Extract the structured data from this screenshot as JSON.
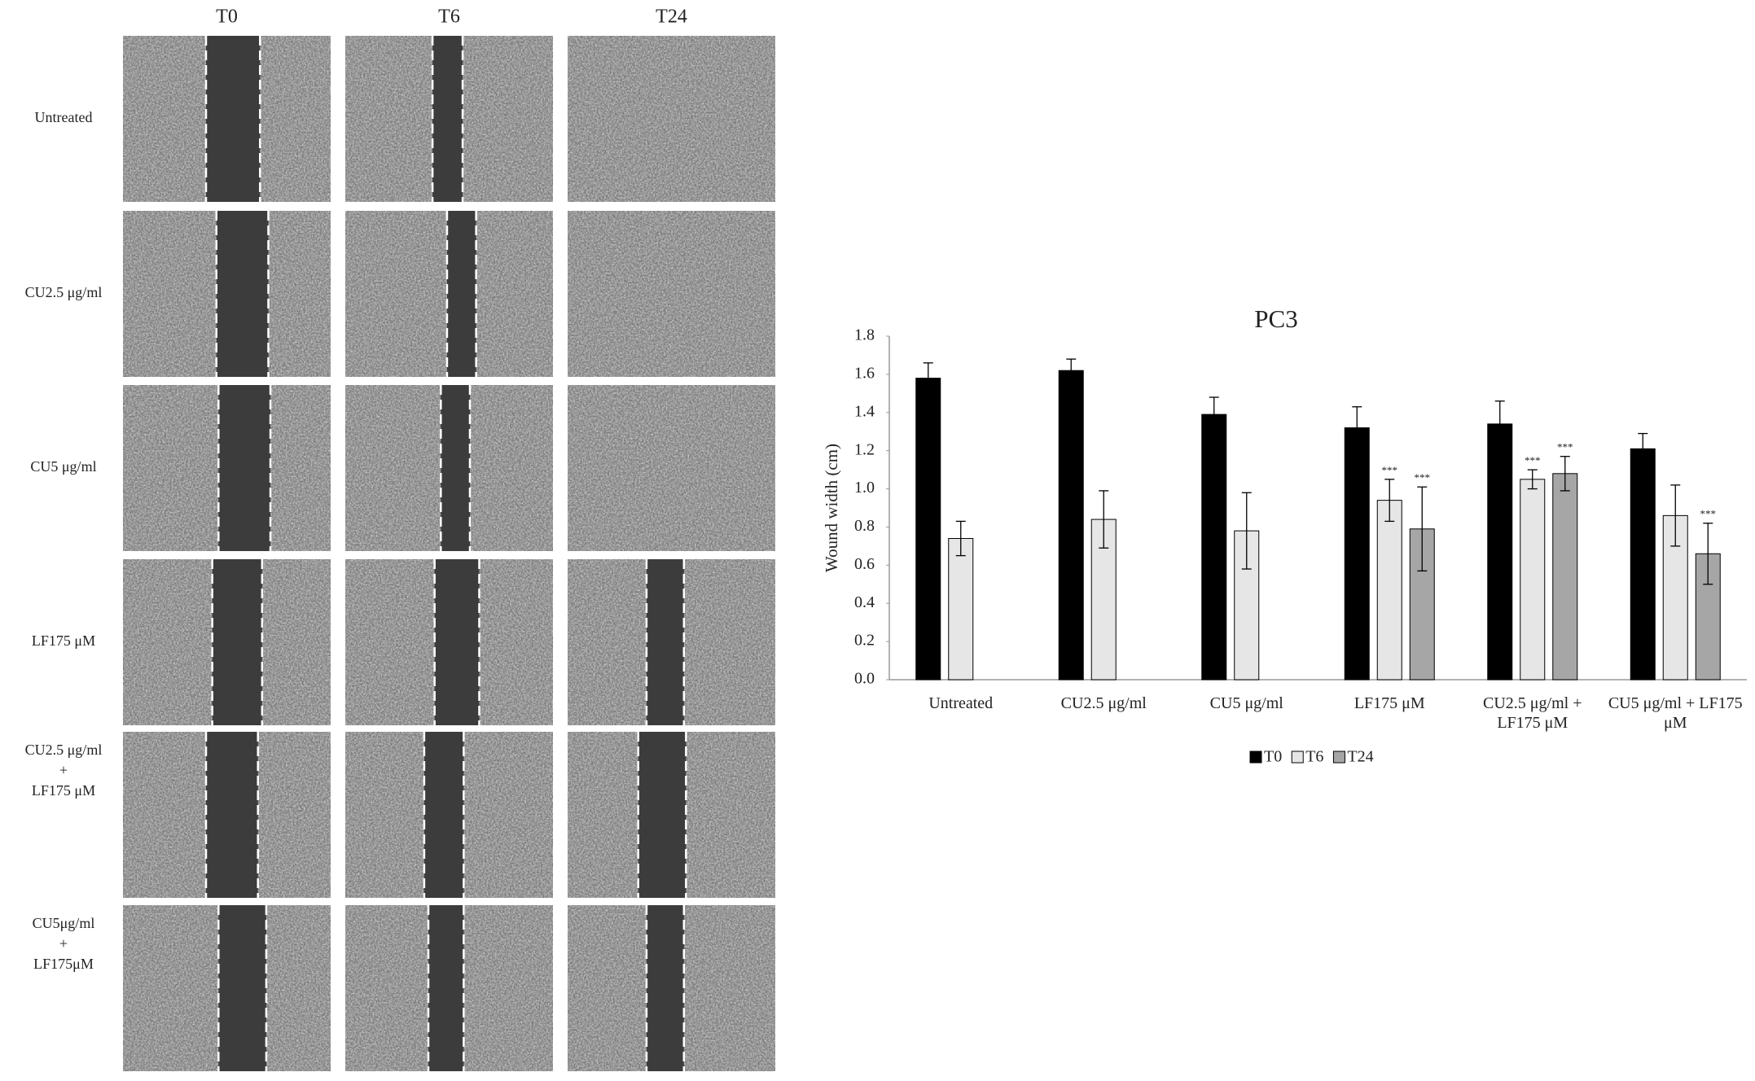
{
  "figure": {
    "columns": [
      "T0",
      "T6",
      "T24"
    ],
    "rows": [
      [
        "Untreated"
      ],
      [
        "CU2.5 μg/ml"
      ],
      [
        "CU5 μg/ml"
      ],
      [
        "LF175 μM"
      ],
      [
        "CU2.5 μg/ml",
        "+",
        "LF175 μM"
      ],
      [
        "CU5μg/ml",
        "+",
        "LF175μM"
      ]
    ]
  },
  "chart_data": {
    "type": "bar",
    "title": "PC3",
    "y_label": "Wound width (cm)",
    "categories": [
      "Untreated",
      "CU2.5 μg/ml",
      "CU5 μg/ml",
      "LF175 μM",
      "CU2.5 μg/ml + LF175 μM",
      "CU5 μg/ml + LF175 μM"
    ],
    "series": [
      {
        "name": "T0",
        "color": "#000000",
        "values": [
          1.58,
          1.62,
          1.39,
          1.32,
          1.34,
          1.21
        ],
        "errors": [
          0.08,
          0.06,
          0.09,
          0.11,
          0.12,
          0.08
        ],
        "significance": [
          null,
          null,
          null,
          null,
          null,
          null
        ]
      },
      {
        "name": "T6",
        "color": "#e6e6e6",
        "values": [
          0.74,
          0.84,
          0.78,
          0.94,
          1.05,
          0.86
        ],
        "errors": [
          0.09,
          0.15,
          0.2,
          0.11,
          0.05,
          0.16
        ],
        "significance": [
          null,
          null,
          null,
          "***",
          "***",
          null
        ]
      },
      {
        "name": "T24",
        "color": "#a6a6a6",
        "values": [
          null,
          null,
          null,
          0.79,
          1.08,
          0.66
        ],
        "errors": [
          null,
          null,
          null,
          0.22,
          0.09,
          0.16
        ],
        "significance": [
          null,
          null,
          null,
          "***",
          "***",
          "***"
        ]
      }
    ],
    "ylim": [
      0,
      1.8
    ],
    "yticks": [
      {
        "value": 0,
        "label": "0.0"
      },
      {
        "value": 0.2,
        "label": "0.2"
      },
      {
        "value": 0.4,
        "label": "0.4"
      },
      {
        "value": 0.6,
        "label": "0.6"
      },
      {
        "value": 0.8,
        "label": "0.8"
      },
      {
        "value": 1.0,
        "label": "1.0"
      },
      {
        "value": 1.2,
        "label": "1.2"
      },
      {
        "value": 1.4,
        "label": "1.4"
      },
      {
        "value": 1.6,
        "label": "1.6"
      },
      {
        "value": 1.8,
        "label": "1.8"
      }
    ],
    "grid": false,
    "legend": "bottom"
  }
}
